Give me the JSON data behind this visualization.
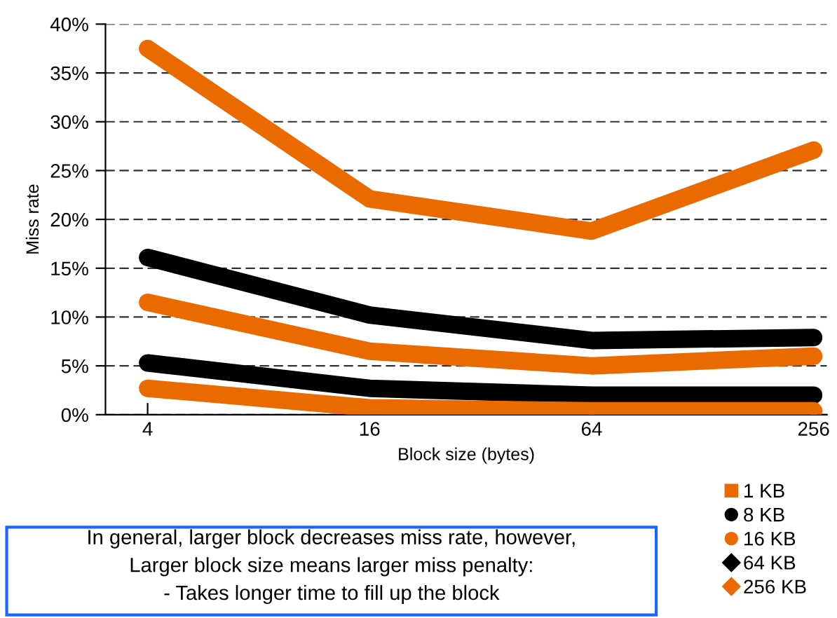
{
  "chart_data": {
    "type": "line",
    "xlabel": "Block size (bytes)",
    "ylabel": "Miss rate",
    "categories": [
      "4",
      "16",
      "64",
      "256"
    ],
    "series": [
      {
        "name": "1 KB",
        "color": "#eb6a00",
        "marker": "square",
        "values": [
          37.5,
          22.1,
          18.8,
          27.1
        ]
      },
      {
        "name": "8 KB",
        "color": "#000000",
        "marker": "circle",
        "values": [
          16.1,
          10.2,
          7.6,
          7.9
        ]
      },
      {
        "name": "16 KB",
        "color": "#eb6a00",
        "marker": "circle",
        "values": [
          11.5,
          6.5,
          5.0,
          6.0
        ]
      },
      {
        "name": "64 KB",
        "color": "#000000",
        "marker": "diamond",
        "values": [
          5.3,
          2.7,
          2.0,
          2.0
        ]
      },
      {
        "name": "256 KB",
        "color": "#eb6a00",
        "marker": "diamond",
        "values": [
          2.7,
          0.7,
          0.4,
          0.4
        ]
      }
    ],
    "ylim": [
      0,
      40
    ],
    "yticks": [
      {
        "value": 0,
        "label": "0%"
      },
      {
        "value": 5,
        "label": "5%"
      },
      {
        "value": 10,
        "label": "10%"
      },
      {
        "value": 15,
        "label": "15%"
      },
      {
        "value": 20,
        "label": "20%"
      },
      {
        "value": 25,
        "label": "25%"
      },
      {
        "value": 30,
        "label": "30%"
      },
      {
        "value": 35,
        "label": "35%"
      },
      {
        "value": 40,
        "label": "40%"
      }
    ],
    "grid": "y",
    "legend": "bottom right",
    "line_style": "solid",
    "annotations": [
      "In general, larger block decreases miss rate, however,",
      "Larger block size means larger miss penalty:",
      "- Takes longer time to fill up the block"
    ]
  }
}
